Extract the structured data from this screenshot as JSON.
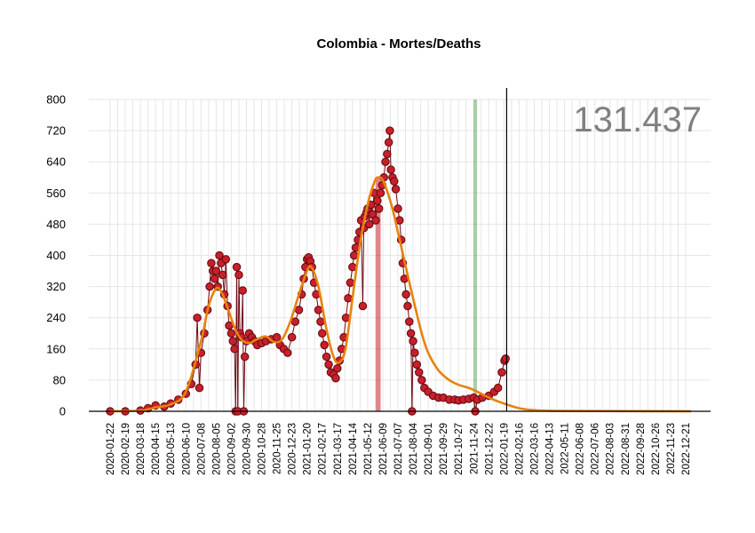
{
  "chart_data": {
    "type": "scatter",
    "title": "Colombia - Mortes/Deaths",
    "total_label": "131.437",
    "ylim": [
      0,
      800
    ],
    "yticks": [
      0,
      80,
      160,
      240,
      320,
      400,
      480,
      560,
      640,
      720,
      800
    ],
    "x_range": [
      "2020-01-22",
      "2022-12-31"
    ],
    "xticks": [
      "2020-01-22",
      "2020-02-19",
      "2020-03-18",
      "2020-04-15",
      "2020-05-13",
      "2020-06-10",
      "2020-07-08",
      "2020-08-05",
      "2020-09-02",
      "2020-09-30",
      "2020-10-28",
      "2020-11-25",
      "2020-12-23",
      "2021-01-20",
      "2021-02-17",
      "2021-03-17",
      "2021-04-14",
      "2021-05-12",
      "2021-06-09",
      "2021-07-07",
      "2021-08-04",
      "2021-09-01",
      "2021-09-29",
      "2021-10-27",
      "2021-11-24",
      "2021-12-22",
      "2022-01-19",
      "2022-02-16",
      "2022-03-16",
      "2022-04-13",
      "2022-05-11",
      "2022-06-08",
      "2022-07-06",
      "2022-08-03",
      "2022-08-31",
      "2022-09-28",
      "2022-10-26",
      "2022-11-23",
      "2022-12-21"
    ],
    "grid": true,
    "colors": {
      "points": "#c8202a",
      "point_edge": "#6b0a12",
      "stems": "#6b0a12",
      "trend": "#e8820c",
      "red_band": "#c8202a",
      "green_line": "#3c9a3c",
      "vline": "#000000",
      "grid": "#e6e6e6"
    },
    "red_band": {
      "x": [
        "2021-05-27",
        "2021-06-05"
      ],
      "y_max": 600
    },
    "green_line": {
      "x": "2021-11-27"
    },
    "vline": {
      "x": "2022-01-24"
    },
    "series": [
      {
        "type": "points",
        "note_points": [
          [
            "2020-01-22",
            0
          ],
          [
            "2020-02-19",
            0
          ],
          [
            "2020-03-18",
            2
          ],
          [
            "2020-04-01",
            8
          ],
          [
            "2020-04-15",
            15
          ],
          [
            "2020-05-01",
            12
          ],
          [
            "2020-05-13",
            20
          ],
          [
            "2020-05-27",
            30
          ],
          [
            "2020-06-10",
            45
          ],
          [
            "2020-06-20",
            70
          ],
          [
            "2020-06-28",
            120
          ],
          [
            "2020-07-01",
            240
          ],
          [
            "2020-07-05",
            60
          ],
          [
            "2020-07-08",
            150
          ],
          [
            "2020-07-14",
            200
          ],
          [
            "2020-07-20",
            260
          ],
          [
            "2020-07-24",
            320
          ],
          [
            "2020-07-27",
            380
          ],
          [
            "2020-07-30",
            360
          ],
          [
            "2020-08-02",
            340
          ],
          [
            "2020-08-05",
            360
          ],
          [
            "2020-08-08",
            320
          ],
          [
            "2020-08-11",
            400
          ],
          [
            "2020-08-14",
            380
          ],
          [
            "2020-08-17",
            350
          ],
          [
            "2020-08-20",
            300
          ],
          [
            "2020-08-23",
            390
          ],
          [
            "2020-08-26",
            270
          ],
          [
            "2020-08-29",
            220
          ],
          [
            "2020-09-02",
            200
          ],
          [
            "2020-09-05",
            180
          ],
          [
            "2020-09-08",
            160
          ],
          [
            "2020-09-10",
            0
          ],
          [
            "2020-09-12",
            370
          ],
          [
            "2020-09-14",
            0
          ],
          [
            "2020-09-16",
            350
          ],
          [
            "2020-09-18",
            200
          ],
          [
            "2020-09-21",
            190
          ],
          [
            "2020-09-23",
            310
          ],
          [
            "2020-09-25",
            0
          ],
          [
            "2020-09-27",
            140
          ],
          [
            "2020-09-30",
            180
          ],
          [
            "2020-10-05",
            200
          ],
          [
            "2020-10-10",
            190
          ],
          [
            "2020-10-15",
            180
          ],
          [
            "2020-10-20",
            170
          ],
          [
            "2020-10-28",
            175
          ],
          [
            "2020-11-05",
            180
          ],
          [
            "2020-11-15",
            185
          ],
          [
            "2020-11-25",
            190
          ],
          [
            "2020-12-01",
            170
          ],
          [
            "2020-12-08",
            160
          ],
          [
            "2020-12-15",
            150
          ],
          [
            "2020-12-23",
            190
          ],
          [
            "2020-12-29",
            230
          ],
          [
            "2021-01-05",
            260
          ],
          [
            "2021-01-10",
            300
          ],
          [
            "2021-01-14",
            340
          ],
          [
            "2021-01-17",
            370
          ],
          [
            "2021-01-20",
            390
          ],
          [
            "2021-01-23",
            395
          ],
          [
            "2021-01-26",
            385
          ],
          [
            "2021-01-29",
            370
          ],
          [
            "2021-02-02",
            330
          ],
          [
            "2021-02-06",
            300
          ],
          [
            "2021-02-10",
            260
          ],
          [
            "2021-02-14",
            230
          ],
          [
            "2021-02-17",
            200
          ],
          [
            "2021-02-21",
            170
          ],
          [
            "2021-02-25",
            140
          ],
          [
            "2021-03-01",
            120
          ],
          [
            "2021-03-05",
            100
          ],
          [
            "2021-03-10",
            95
          ],
          [
            "2021-03-14",
            85
          ],
          [
            "2021-03-17",
            110
          ],
          [
            "2021-03-21",
            130
          ],
          [
            "2021-03-25",
            160
          ],
          [
            "2021-03-29",
            190
          ],
          [
            "2021-04-02",
            240
          ],
          [
            "2021-04-06",
            290
          ],
          [
            "2021-04-10",
            330
          ],
          [
            "2021-04-14",
            370
          ],
          [
            "2021-04-17",
            400
          ],
          [
            "2021-04-20",
            420
          ],
          [
            "2021-04-24",
            440
          ],
          [
            "2021-04-27",
            460
          ],
          [
            "2021-04-30",
            490
          ],
          [
            "2021-05-03",
            270
          ],
          [
            "2021-05-05",
            470
          ],
          [
            "2021-05-07",
            500
          ],
          [
            "2021-05-10",
            510
          ],
          [
            "2021-05-12",
            520
          ],
          [
            "2021-05-15",
            480
          ],
          [
            "2021-05-18",
            530
          ],
          [
            "2021-05-21",
            505
          ],
          [
            "2021-05-24",
            560
          ],
          [
            "2021-05-27",
            490
          ],
          [
            "2021-05-30",
            540
          ],
          [
            "2021-06-02",
            520
          ],
          [
            "2021-06-05",
            560
          ],
          [
            "2021-06-08",
            580
          ],
          [
            "2021-06-11",
            600
          ],
          [
            "2021-06-14",
            640
          ],
          [
            "2021-06-17",
            660
          ],
          [
            "2021-06-20",
            690
          ],
          [
            "2021-06-22",
            720
          ],
          [
            "2021-06-24",
            620
          ],
          [
            "2021-06-27",
            600
          ],
          [
            "2021-06-30",
            590
          ],
          [
            "2021-07-03",
            570
          ],
          [
            "2021-07-07",
            520
          ],
          [
            "2021-07-10",
            490
          ],
          [
            "2021-07-13",
            440
          ],
          [
            "2021-07-16",
            380
          ],
          [
            "2021-07-19",
            340
          ],
          [
            "2021-07-22",
            300
          ],
          [
            "2021-07-25",
            270
          ],
          [
            "2021-07-28",
            230
          ],
          [
            "2021-07-31",
            200
          ],
          [
            "2021-08-02",
            0
          ],
          [
            "2021-08-04",
            180
          ],
          [
            "2021-08-07",
            150
          ],
          [
            "2021-08-11",
            120
          ],
          [
            "2021-08-15",
            100
          ],
          [
            "2021-08-20",
            80
          ],
          [
            "2021-08-25",
            60
          ],
          [
            "2021-09-01",
            50
          ],
          [
            "2021-09-10",
            40
          ],
          [
            "2021-09-20",
            35
          ],
          [
            "2021-09-29",
            35
          ],
          [
            "2021-10-10",
            30
          ],
          [
            "2021-10-20",
            30
          ],
          [
            "2021-10-27",
            28
          ],
          [
            "2021-11-05",
            30
          ],
          [
            "2021-11-15",
            32
          ],
          [
            "2021-11-24",
            35
          ],
          [
            "2021-11-27",
            0
          ],
          [
            "2021-12-01",
            30
          ],
          [
            "2021-12-10",
            35
          ],
          [
            "2021-12-22",
            40
          ],
          [
            "2022-01-01",
            50
          ],
          [
            "2022-01-08",
            60
          ],
          [
            "2022-01-15",
            100
          ],
          [
            "2022-01-20",
            130
          ],
          [
            "2022-01-22",
            135
          ]
        ]
      },
      {
        "type": "trend",
        "note_points": [
          [
            "2020-01-22",
            0
          ],
          [
            "2020-03-18",
            2
          ],
          [
            "2020-04-15",
            10
          ],
          [
            "2020-05-13",
            18
          ],
          [
            "2020-06-10",
            50
          ],
          [
            "2020-07-08",
            180
          ],
          [
            "2020-07-22",
            270
          ],
          [
            "2020-08-05",
            315
          ],
          [
            "2020-08-15",
            305
          ],
          [
            "2020-08-25",
            270
          ],
          [
            "2020-09-08",
            215
          ],
          [
            "2020-09-20",
            185
          ],
          [
            "2020-10-05",
            175
          ],
          [
            "2020-10-20",
            185
          ],
          [
            "2020-11-05",
            192
          ],
          [
            "2020-11-20",
            178
          ],
          [
            "2020-12-05",
            185
          ],
          [
            "2020-12-20",
            230
          ],
          [
            "2021-01-05",
            300
          ],
          [
            "2021-01-20",
            360
          ],
          [
            "2021-01-28",
            370
          ],
          [
            "2021-02-10",
            320
          ],
          [
            "2021-02-25",
            210
          ],
          [
            "2021-03-10",
            140
          ],
          [
            "2021-03-20",
            125
          ],
          [
            "2021-04-01",
            160
          ],
          [
            "2021-04-14",
            290
          ],
          [
            "2021-04-28",
            430
          ],
          [
            "2021-05-12",
            530
          ],
          [
            "2021-05-25",
            590
          ],
          [
            "2021-06-01",
            600
          ],
          [
            "2021-06-10",
            590
          ],
          [
            "2021-06-25",
            530
          ],
          [
            "2021-07-07",
            460
          ],
          [
            "2021-07-20",
            380
          ],
          [
            "2021-08-04",
            290
          ],
          [
            "2021-08-20",
            200
          ],
          [
            "2021-09-01",
            150
          ],
          [
            "2021-09-20",
            105
          ],
          [
            "2021-10-10",
            80
          ],
          [
            "2021-10-27",
            68
          ],
          [
            "2021-11-15",
            60
          ],
          [
            "2021-12-01",
            50
          ],
          [
            "2021-12-22",
            35
          ],
          [
            "2022-01-19",
            20
          ],
          [
            "2022-02-16",
            8
          ],
          [
            "2022-03-16",
            3
          ],
          [
            "2022-05-11",
            1
          ],
          [
            "2022-12-31",
            0
          ]
        ]
      }
    ]
  }
}
